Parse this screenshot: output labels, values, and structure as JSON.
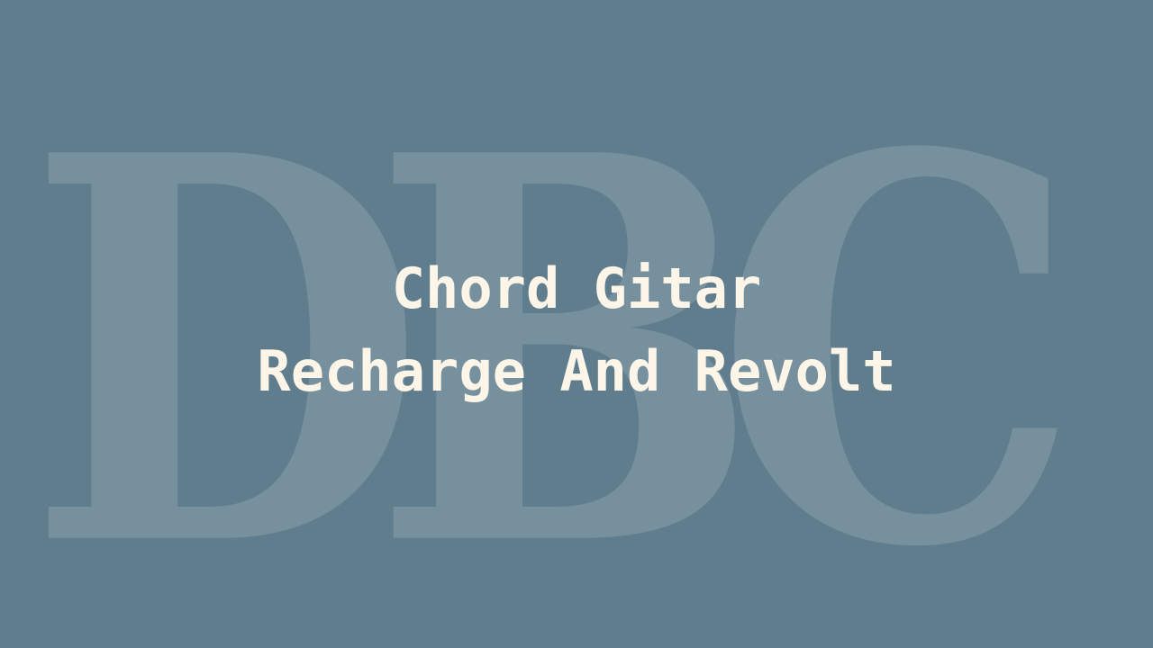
{
  "watermark": {
    "text": "DBC"
  },
  "title": {
    "line1": "Chord Gitar",
    "line2": "Recharge And Revolt"
  },
  "colors": {
    "background": "#607d8e",
    "title_text": "#fdf6e8",
    "watermark": "#7a909d"
  }
}
